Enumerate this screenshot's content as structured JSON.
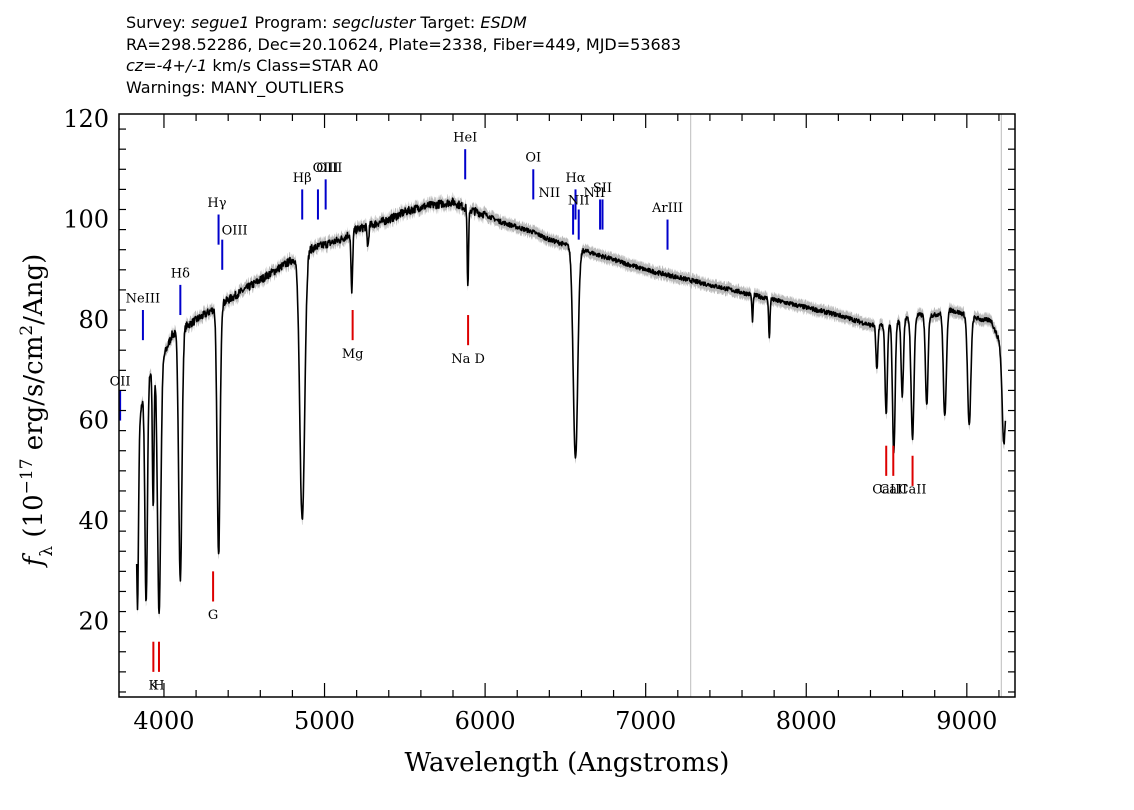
{
  "header": {
    "line1": {
      "survey_label": "Survey: ",
      "survey": "segue1",
      "program_label": " Program: ",
      "program": "segcluster",
      "target_label": " Target: ",
      "target": "ESDM"
    },
    "line2": "RA=298.52286, Dec=20.10624, Plate=2338, Fiber=449, MJD=53683",
    "line3": {
      "cz": "cz=-4+/-1",
      "rest": " km/s Class=STAR A0"
    },
    "line4": "Warnings: MANY_OUTLIERS"
  },
  "chart_data": {
    "type": "line",
    "xlabel": "Wavelength (Angstroms)",
    "ylabel": "f_λ (10^-17 erg/s/cm^2/Ang)",
    "xlim": [
      3720,
      9300
    ],
    "ylim": [
      5,
      121
    ],
    "x_ticks": [
      4000,
      5000,
      6000,
      7000,
      8000,
      9000
    ],
    "y_ticks": [
      20,
      40,
      60,
      80,
      100,
      120
    ],
    "grid": false,
    "legend": "none",
    "colors": {
      "spectrum": "#000000",
      "error": "#bbbbbb",
      "emission": "#0000cc",
      "absorption": "#dd0000",
      "guide": "#c8c8c8"
    },
    "continuum": [
      [
        3830,
        57
      ],
      [
        3850,
        60
      ],
      [
        3880,
        68
      ],
      [
        3920,
        70
      ],
      [
        3950,
        71
      ],
      [
        4000,
        73
      ],
      [
        4050,
        77
      ],
      [
        4100,
        78
      ],
      [
        4150,
        79
      ],
      [
        4200,
        80
      ],
      [
        4250,
        81
      ],
      [
        4300,
        82
      ],
      [
        4350,
        83
      ],
      [
        4400,
        84
      ],
      [
        4450,
        85
      ],
      [
        4500,
        86
      ],
      [
        4600,
        88
      ],
      [
        4700,
        90
      ],
      [
        4800,
        92
      ],
      [
        4900,
        94
      ],
      [
        5000,
        95
      ],
      [
        5100,
        96
      ],
      [
        5200,
        98
      ],
      [
        5300,
        99
      ],
      [
        5400,
        100
      ],
      [
        5500,
        101.5
      ],
      [
        5600,
        102.5
      ],
      [
        5700,
        103
      ],
      [
        5800,
        103.5
      ],
      [
        5900,
        102
      ],
      [
        6000,
        101
      ],
      [
        6100,
        99.5
      ],
      [
        6200,
        98.5
      ],
      [
        6300,
        97.5
      ],
      [
        6400,
        96
      ],
      [
        6500,
        95
      ],
      [
        6600,
        94
      ],
      [
        6700,
        93
      ],
      [
        6800,
        92
      ],
      [
        6900,
        91
      ],
      [
        7000,
        90
      ],
      [
        7200,
        88.5
      ],
      [
        7400,
        87
      ],
      [
        7600,
        85.5
      ],
      [
        7800,
        84
      ],
      [
        8000,
        82.5
      ],
      [
        8200,
        81
      ],
      [
        8400,
        79
      ],
      [
        8500,
        79
      ],
      [
        8600,
        80
      ],
      [
        8700,
        81
      ],
      [
        8800,
        81
      ],
      [
        8900,
        82
      ],
      [
        9000,
        81
      ],
      [
        9100,
        80
      ],
      [
        9150,
        80
      ],
      [
        9200,
        76
      ],
      [
        9240,
        67
      ]
    ],
    "absorption_features": [
      {
        "center": 3835,
        "depth": 35,
        "width": 6
      },
      {
        "center": 3889,
        "depth": 45,
        "width": 8
      },
      {
        "center": 3933,
        "depth": 28,
        "width": 5
      },
      {
        "center": 3970,
        "depth": 50,
        "width": 10
      },
      {
        "center": 4102,
        "depth": 50,
        "width": 10
      },
      {
        "center": 4340,
        "depth": 50,
        "width": 9
      },
      {
        "center": 4861,
        "depth": 53,
        "width": 15
      },
      {
        "center": 5170,
        "depth": 12,
        "width": 5
      },
      {
        "center": 5270,
        "depth": 4,
        "width": 5
      },
      {
        "center": 5893,
        "depth": 16,
        "width": 4
      },
      {
        "center": 6563,
        "depth": 42,
        "width": 14
      },
      {
        "center": 7665,
        "depth": 5,
        "width": 4
      },
      {
        "center": 7770,
        "depth": 8,
        "width": 4
      },
      {
        "center": 8440,
        "depth": 9,
        "width": 6
      },
      {
        "center": 8498,
        "depth": 18,
        "width": 7
      },
      {
        "center": 8545,
        "depth": 26,
        "width": 8
      },
      {
        "center": 8598,
        "depth": 15,
        "width": 7
      },
      {
        "center": 8662,
        "depth": 24,
        "width": 9
      },
      {
        "center": 8750,
        "depth": 18,
        "width": 8
      },
      {
        "center": 8863,
        "depth": 21,
        "width": 9
      },
      {
        "center": 9015,
        "depth": 22,
        "width": 10
      },
      {
        "center": 9229,
        "depth": 14,
        "width": 9
      }
    ],
    "guide_lines": [
      7280,
      9215
    ],
    "emission_lines": [
      {
        "label": "OII",
        "x": 3727,
        "y1": 60,
        "y2": 66,
        "lx": 3727,
        "ly": 67
      },
      {
        "label": "NeIII",
        "x": 3869,
        "y1": 76,
        "y2": 82,
        "lx": 3869,
        "ly": 83.5
      },
      {
        "label": "Hδ",
        "x": 4102,
        "y1": 81,
        "y2": 87,
        "lx": 4102,
        "ly": 88.5
      },
      {
        "label": "Hγ",
        "x": 4340,
        "y1": 95,
        "y2": 101,
        "lx": 4330,
        "ly": 102.5
      },
      {
        "label": "OIII",
        "x": 4363,
        "y1": 90,
        "y2": 96,
        "lx": 4440,
        "ly": 97
      },
      {
        "label": "Hβ",
        "x": 4861,
        "y1": 100,
        "y2": 106,
        "lx": 4861,
        "ly": 107.5
      },
      {
        "label": "OIII",
        "x": 4959,
        "y1": 100,
        "y2": 106,
        "lx": 5030,
        "ly": 109.5
      },
      {
        "label": "OIII",
        "x": 5007,
        "y1": 102,
        "y2": 108,
        "lx": 5007,
        "ly": 109.5
      },
      {
        "label": "HeI",
        "x": 5876,
        "y1": 108,
        "y2": 114,
        "lx": 5876,
        "ly": 115.5
      },
      {
        "label": "OI",
        "x": 6300,
        "y1": 104,
        "y2": 110,
        "lx": 6300,
        "ly": 111.5
      },
      {
        "label": "NII",
        "x": 6548,
        "y1": 97,
        "y2": 103,
        "lx": 6400,
        "ly": 104.5
      },
      {
        "label": "Hα",
        "x": 6563,
        "y1": 100,
        "y2": 106,
        "lx": 6563,
        "ly": 107.5
      },
      {
        "label": "NII",
        "x": 6583,
        "y1": 96,
        "y2": 102,
        "lx": 6583,
        "ly": 103
      },
      {
        "label": "NII",
        "x": 6716,
        "y1": 98,
        "y2": 104,
        "lx": 6680,
        "ly": 104.5
      },
      {
        "label": "SII",
        "x": 6731,
        "y1": 98,
        "y2": 104,
        "lx": 6731,
        "ly": 105.5
      },
      {
        "label": "ArIII",
        "x": 7136,
        "y1": 94,
        "y2": 100,
        "lx": 7136,
        "ly": 101.5
      }
    ],
    "absorption_lines": [
      {
        "label": "K",
        "x": 3934,
        "y1": 10,
        "y2": 16,
        "lx": 3934,
        "ly": 6.5
      },
      {
        "label": "H",
        "x": 3969,
        "y1": 10,
        "y2": 16,
        "lx": 3969,
        "ly": 6.5
      },
      {
        "label": "G",
        "x": 4306,
        "y1": 24,
        "y2": 30,
        "lx": 4306,
        "ly": 20.5
      },
      {
        "label": "Mg",
        "x": 5175,
        "y1": 76,
        "y2": 82,
        "lx": 5175,
        "ly": 72.5
      },
      {
        "label": "Na D",
        "x": 5894,
        "y1": 75,
        "y2": 81,
        "lx": 5894,
        "ly": 71.5
      },
      {
        "label": "CaII",
        "x": 8498,
        "y1": 49,
        "y2": 55,
        "lx": 8498,
        "ly": 45.5
      },
      {
        "label": "CaII",
        "x": 8542,
        "y1": 49,
        "y2": 55,
        "lx": 8542,
        "ly": 45.5
      },
      {
        "label": "CaII",
        "x": 8662,
        "y1": 47,
        "y2": 53,
        "lx": 8662,
        "ly": 45.5
      }
    ]
  }
}
